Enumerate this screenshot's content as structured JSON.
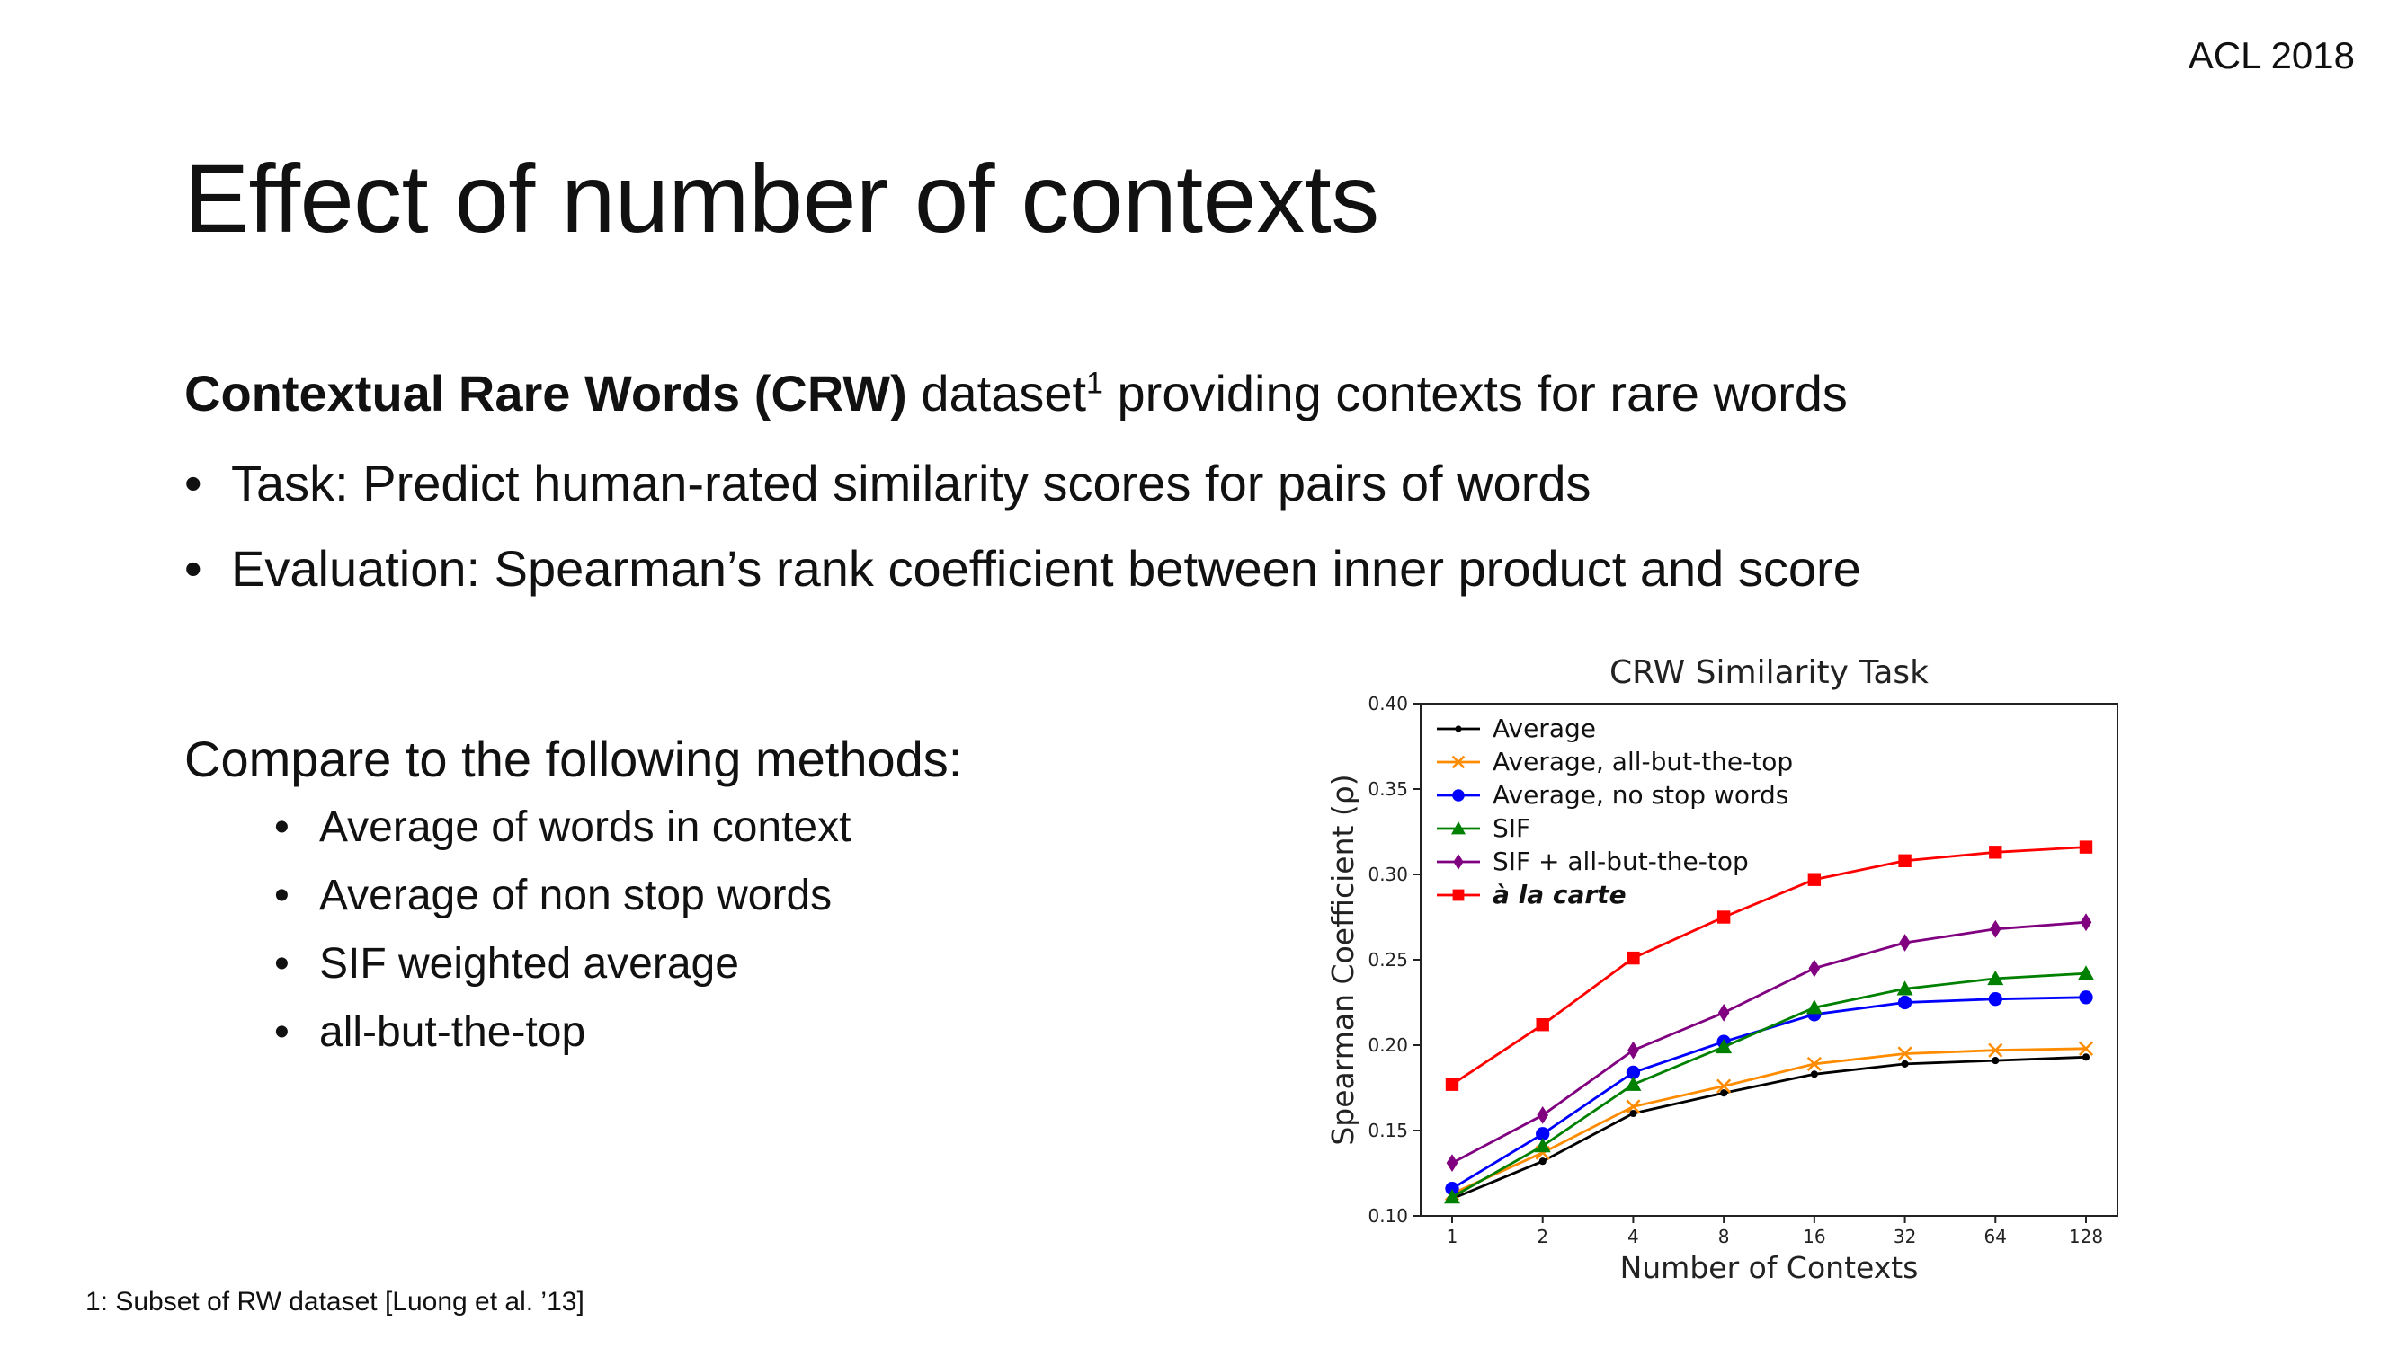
{
  "header": {
    "venue": "ACL 2018"
  },
  "slide": {
    "title": "Effect of number of contexts",
    "intro_bold": "Contextual Rare Words (CRW)",
    "intro_rest": " dataset",
    "intro_sup": "1",
    "intro_tail": " providing contexts for rare words",
    "bullets": [
      "Task: Predict human-rated similarity scores for pairs of words",
      "Evaluation: Spearman’s rank coefficient between inner product and score"
    ],
    "compare_heading": "Compare to the following methods:",
    "methods": [
      "Average of words in context",
      "Average of non stop words",
      "SIF weighted average",
      "all-but-the-top"
    ],
    "footnote": "1: Subset of RW dataset [Luong et al. ’13]"
  },
  "chart_data": {
    "type": "line",
    "title": "CRW Similarity Task",
    "xlabel": "Number of Contexts",
    "ylabel": "Spearman Coefficient (ρ)",
    "x": [
      "1",
      "2",
      "4",
      "8",
      "16",
      "32",
      "64",
      "128"
    ],
    "ylim": [
      0.1,
      0.4
    ],
    "yticks": [
      "0.10",
      "0.15",
      "0.20",
      "0.25",
      "0.30",
      "0.35",
      "0.40"
    ],
    "grid": false,
    "legend_position": "top-left",
    "series": [
      {
        "name": "Average",
        "color": "#000000",
        "marker": "dot",
        "values": [
          0.11,
          0.132,
          0.16,
          0.172,
          0.183,
          0.189,
          0.191,
          0.193
        ]
      },
      {
        "name": "Average, all-but-the-top",
        "color": "#ff8c00",
        "marker": "x",
        "values": [
          0.113,
          0.137,
          0.164,
          0.176,
          0.189,
          0.195,
          0.197,
          0.198
        ]
      },
      {
        "name": "Average, no stop words",
        "color": "#0000ff",
        "marker": "circle",
        "values": [
          0.116,
          0.148,
          0.184,
          0.202,
          0.218,
          0.225,
          0.227,
          0.228
        ]
      },
      {
        "name": "SIF",
        "color": "#008000",
        "marker": "triangle",
        "values": [
          0.111,
          0.141,
          0.177,
          0.199,
          0.222,
          0.233,
          0.239,
          0.242
        ]
      },
      {
        "name": "SIF + all-but-the-top",
        "color": "#800080",
        "marker": "diamond",
        "values": [
          0.131,
          0.159,
          0.197,
          0.219,
          0.245,
          0.26,
          0.268,
          0.272
        ]
      },
      {
        "name": "à la carte",
        "color": "#ff0000",
        "marker": "square",
        "values": [
          0.177,
          0.212,
          0.251,
          0.275,
          0.297,
          0.308,
          0.313,
          0.316
        ]
      }
    ]
  }
}
